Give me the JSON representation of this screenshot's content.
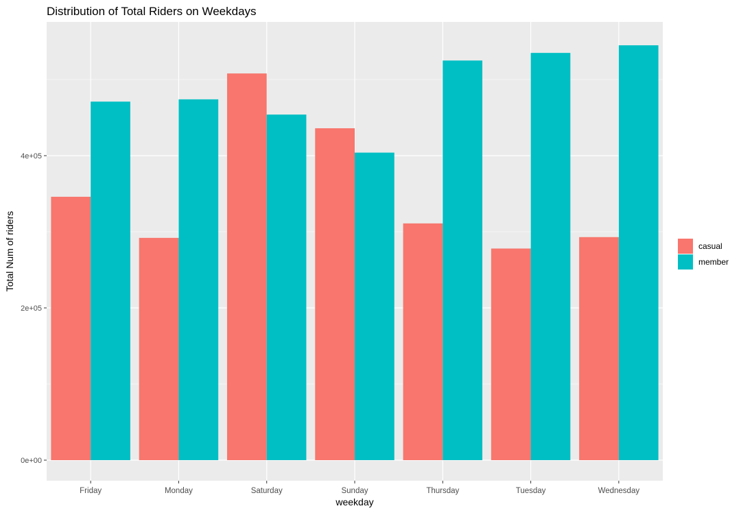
{
  "chart_data": {
    "type": "bar",
    "title": "Distribution of Total Riders on Weekdays",
    "xlabel": "weekday",
    "ylabel": "Total Num of riders",
    "categories": [
      "Friday",
      "Monday",
      "Saturday",
      "Sunday",
      "Thursday",
      "Tuesday",
      "Wednesday"
    ],
    "series": [
      {
        "name": "casual",
        "color": "#F8766D",
        "values": [
          346000,
          292000,
          508000,
          436000,
          311000,
          278000,
          293000
        ]
      },
      {
        "name": "member",
        "color": "#00BFC4",
        "values": [
          471000,
          474000,
          454000,
          404000,
          525000,
          535000,
          545000
        ]
      }
    ],
    "ylim": [
      0,
      550000
    ],
    "yticks": [
      0,
      200000,
      400000
    ],
    "ytick_labels": [
      "0e+00",
      "2e+05",
      "4e+05"
    ],
    "grid": true,
    "legend_position": "right",
    "panel_color": "#EBEBEB"
  }
}
